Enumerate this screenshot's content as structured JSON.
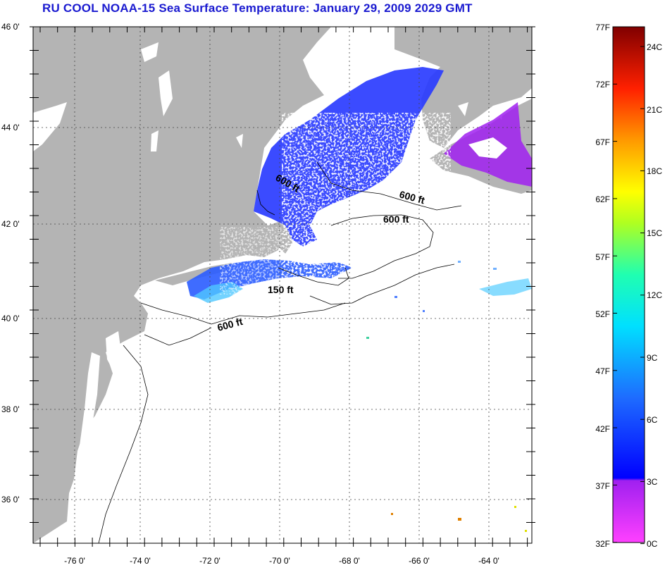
{
  "title": "RU COOL  NOAA-15  Sea Surface Temperature:  January 29, 2009 2029 GMT",
  "axes": {
    "lat_ticks": [
      {
        "value": 46,
        "label": "46 0'"
      },
      {
        "value": 44,
        "label": "44 0'"
      },
      {
        "value": 42,
        "label": "42 0'"
      },
      {
        "value": 40,
        "label": "40 0'"
      },
      {
        "value": 38,
        "label": "38 0'"
      },
      {
        "value": 36,
        "label": "36 0'"
      }
    ],
    "lon_ticks": [
      {
        "value": -76,
        "label": "-76 0'"
      },
      {
        "value": -74,
        "label": "-74 0'"
      },
      {
        "value": -72,
        "label": "-72 0'"
      },
      {
        "value": -70,
        "label": "-70 0'"
      },
      {
        "value": -68,
        "label": "-68 0'"
      },
      {
        "value": -66,
        "label": "-66 0'"
      },
      {
        "value": -64,
        "label": "-64 0'"
      }
    ],
    "lon_range": [
      -77,
      -62.8
    ],
    "lat_range": [
      35,
      46
    ]
  },
  "contours": [
    {
      "label": "600 ft",
      "lon": -70.25,
      "lat": 42.8
    },
    {
      "label": "600 ft",
      "lon": -65.6,
      "lat": 42.55
    },
    {
      "label": "600 ft",
      "lon": -67.1,
      "lat": 42.1
    },
    {
      "label": "150 ft",
      "lon": -70.5,
      "lat": 40.65
    },
    {
      "label": "600 ft",
      "lon": -71.7,
      "lat": 39.9
    }
  ],
  "colorbar": {
    "f_labels": [
      "77F",
      "72F",
      "67F",
      "62F",
      "57F",
      "52F",
      "47F",
      "42F",
      "37F",
      "32F"
    ],
    "c_labels": [
      "24C",
      "21C",
      "18C",
      "15C",
      "12C",
      "9C",
      "6C",
      "3C",
      "0C"
    ]
  },
  "colors": {
    "land": "#b4b4b4",
    "ocean": "#ffffff",
    "title": "#1a1ad0",
    "sst_cold": "#2a3cff",
    "sst_very_cold": "#a020f0"
  }
}
